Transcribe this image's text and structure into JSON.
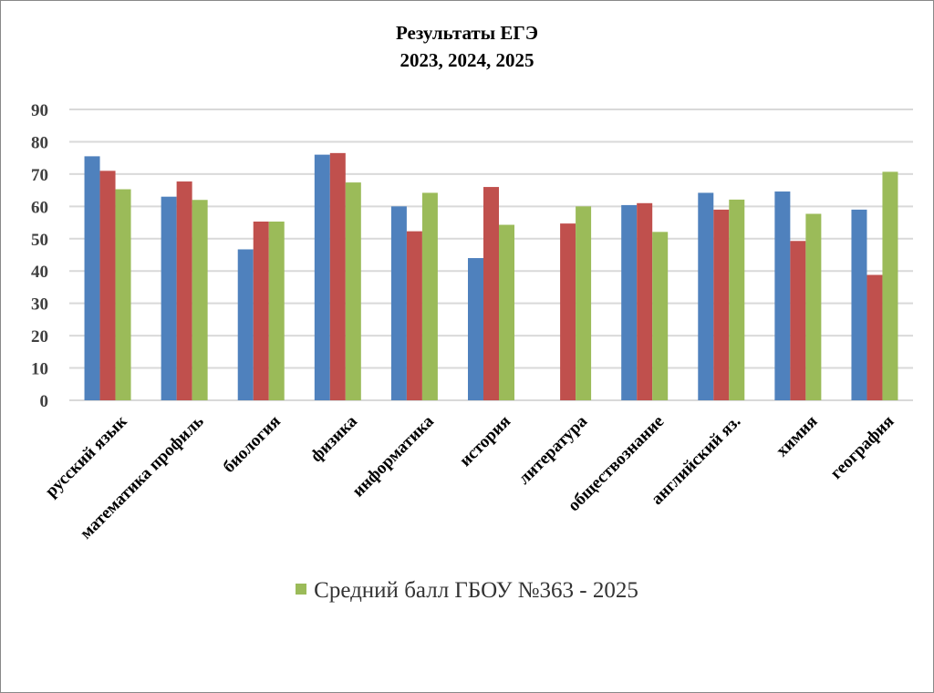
{
  "chart_data": {
    "type": "bar",
    "title": "Результаты  ЕГЭ",
    "subtitle": "2023, 2024, 2025",
    "xlabel": "",
    "ylabel": "",
    "ylim": [
      0,
      90
    ],
    "yticks": [
      0,
      10,
      20,
      30,
      40,
      50,
      60,
      70,
      80,
      90
    ],
    "grid": true,
    "legend_position": "bottom",
    "categories": [
      "русский язык",
      "математика профиль",
      "биология",
      "физика",
      "информатика",
      "история",
      "литература",
      "обществознание",
      "английский яз.",
      "химия",
      "география"
    ],
    "series": [
      {
        "name": "",
        "color": "#4F81BD",
        "show_in_legend": false,
        "values": [
          75.5,
          63.0,
          46.7,
          76.0,
          60.0,
          44.0,
          null,
          60.4,
          64.2,
          64.6,
          59.0
        ]
      },
      {
        "name": "",
        "color": "#C0504D",
        "show_in_legend": false,
        "values": [
          71.0,
          67.7,
          55.3,
          76.5,
          52.3,
          66.0,
          54.7,
          61.0,
          59.0,
          49.3,
          38.8
        ]
      },
      {
        "name": "Средний балл ГБОУ №363 - 2025",
        "color": "#9BBB59",
        "show_in_legend": true,
        "values": [
          65.3,
          62.0,
          55.3,
          67.4,
          64.2,
          54.3,
          60.0,
          52.1,
          62.1,
          57.7,
          70.7
        ]
      }
    ]
  }
}
